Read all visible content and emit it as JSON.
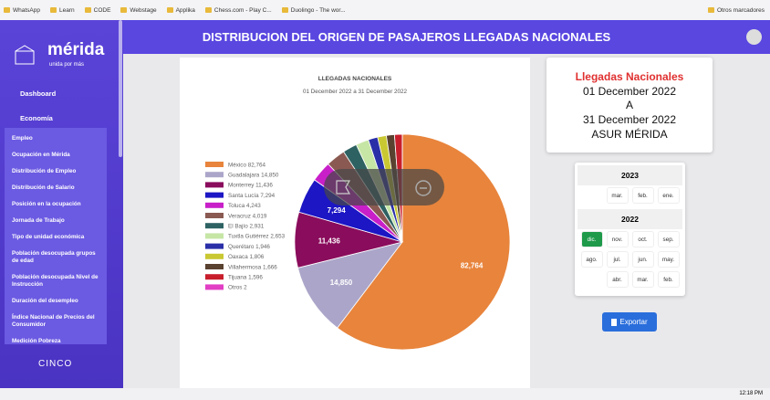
{
  "bookmarks": [
    "WhatsApp",
    "Learn",
    "CODE",
    "Webstage",
    "Applika",
    "Chess.com - Play C...",
    "Duolingo - The wor...",
    "Otros marcadores"
  ],
  "sidebar": {
    "brand": "mérida",
    "tagline": "unida por más",
    "dashboard": "Dashboard",
    "section": "Economía",
    "items": [
      "Empleo",
      "Ocupación en Mérida",
      "Distribución de Empleo",
      "Distribución de Salario",
      "Posición en la ocupación",
      "Jornada de Trabajo",
      "Tipo de unidad económica",
      "Población desocupada grupos de edad",
      "Población desocupada Nivel de Instrucción",
      "Duración del desempleo",
      "Índice Nacional de Precios del Consumidor",
      "Medición Pobreza"
    ],
    "footer": "CINCO"
  },
  "header": {
    "title": "DISTRIBUCION DEL ORIGEN DE PASAJEROS LLEGADAS NACIONALES"
  },
  "chart_data": {
    "type": "pie",
    "title": "LLEGADAS NACIONALES",
    "subtitle": "01 December 2022  a 31 December 2022",
    "categories": [
      "México",
      "Guadalajara",
      "Monterrey",
      "Santa Lucía",
      "Toluca",
      "Veracruz",
      "El Bajío",
      "Tuxtla Gutiérrez",
      "Querétaro",
      "Oaxaca",
      "Villahermosa",
      "Tijuana",
      "Otros"
    ],
    "values": [
      82764,
      14850,
      11436,
      7294,
      4243,
      4019,
      2931,
      2653,
      1946,
      1806,
      1666,
      1596,
      2
    ],
    "value_labels": [
      "82,764",
      "14,850",
      "11,436",
      "7,294",
      "4,243",
      "4,019",
      "2,931",
      "2,653",
      "1,946",
      "1,806",
      "1,666",
      "1,596",
      "2"
    ],
    "colors": [
      "#e8843c",
      "#aba6c9",
      "#8a0c5c",
      "#1c16c4",
      "#c81fc9",
      "#8a5a52",
      "#2e6262",
      "#c6e6a6",
      "#2a2fa8",
      "#c9c832",
      "#5a4230",
      "#c81e2c",
      "#e23fc4"
    ]
  },
  "info": {
    "title": "Llegadas Nacionales",
    "from": "01 December 2022",
    "sep": "A",
    "to": "31 December 2022",
    "place": "ASUR MÉRIDA"
  },
  "calendar": [
    {
      "year": "2023",
      "months": [
        "mar.",
        "feb.",
        "ene."
      ]
    },
    {
      "year": "2022",
      "months": [
        "dic.",
        "nov.",
        "oct.",
        "sep.",
        "ago.",
        "jul.",
        "jun.",
        "may.",
        "abr.",
        "mar.",
        "feb."
      ]
    }
  ],
  "button": "Exportar",
  "taskbar": {
    "time": "12:18 PM"
  }
}
